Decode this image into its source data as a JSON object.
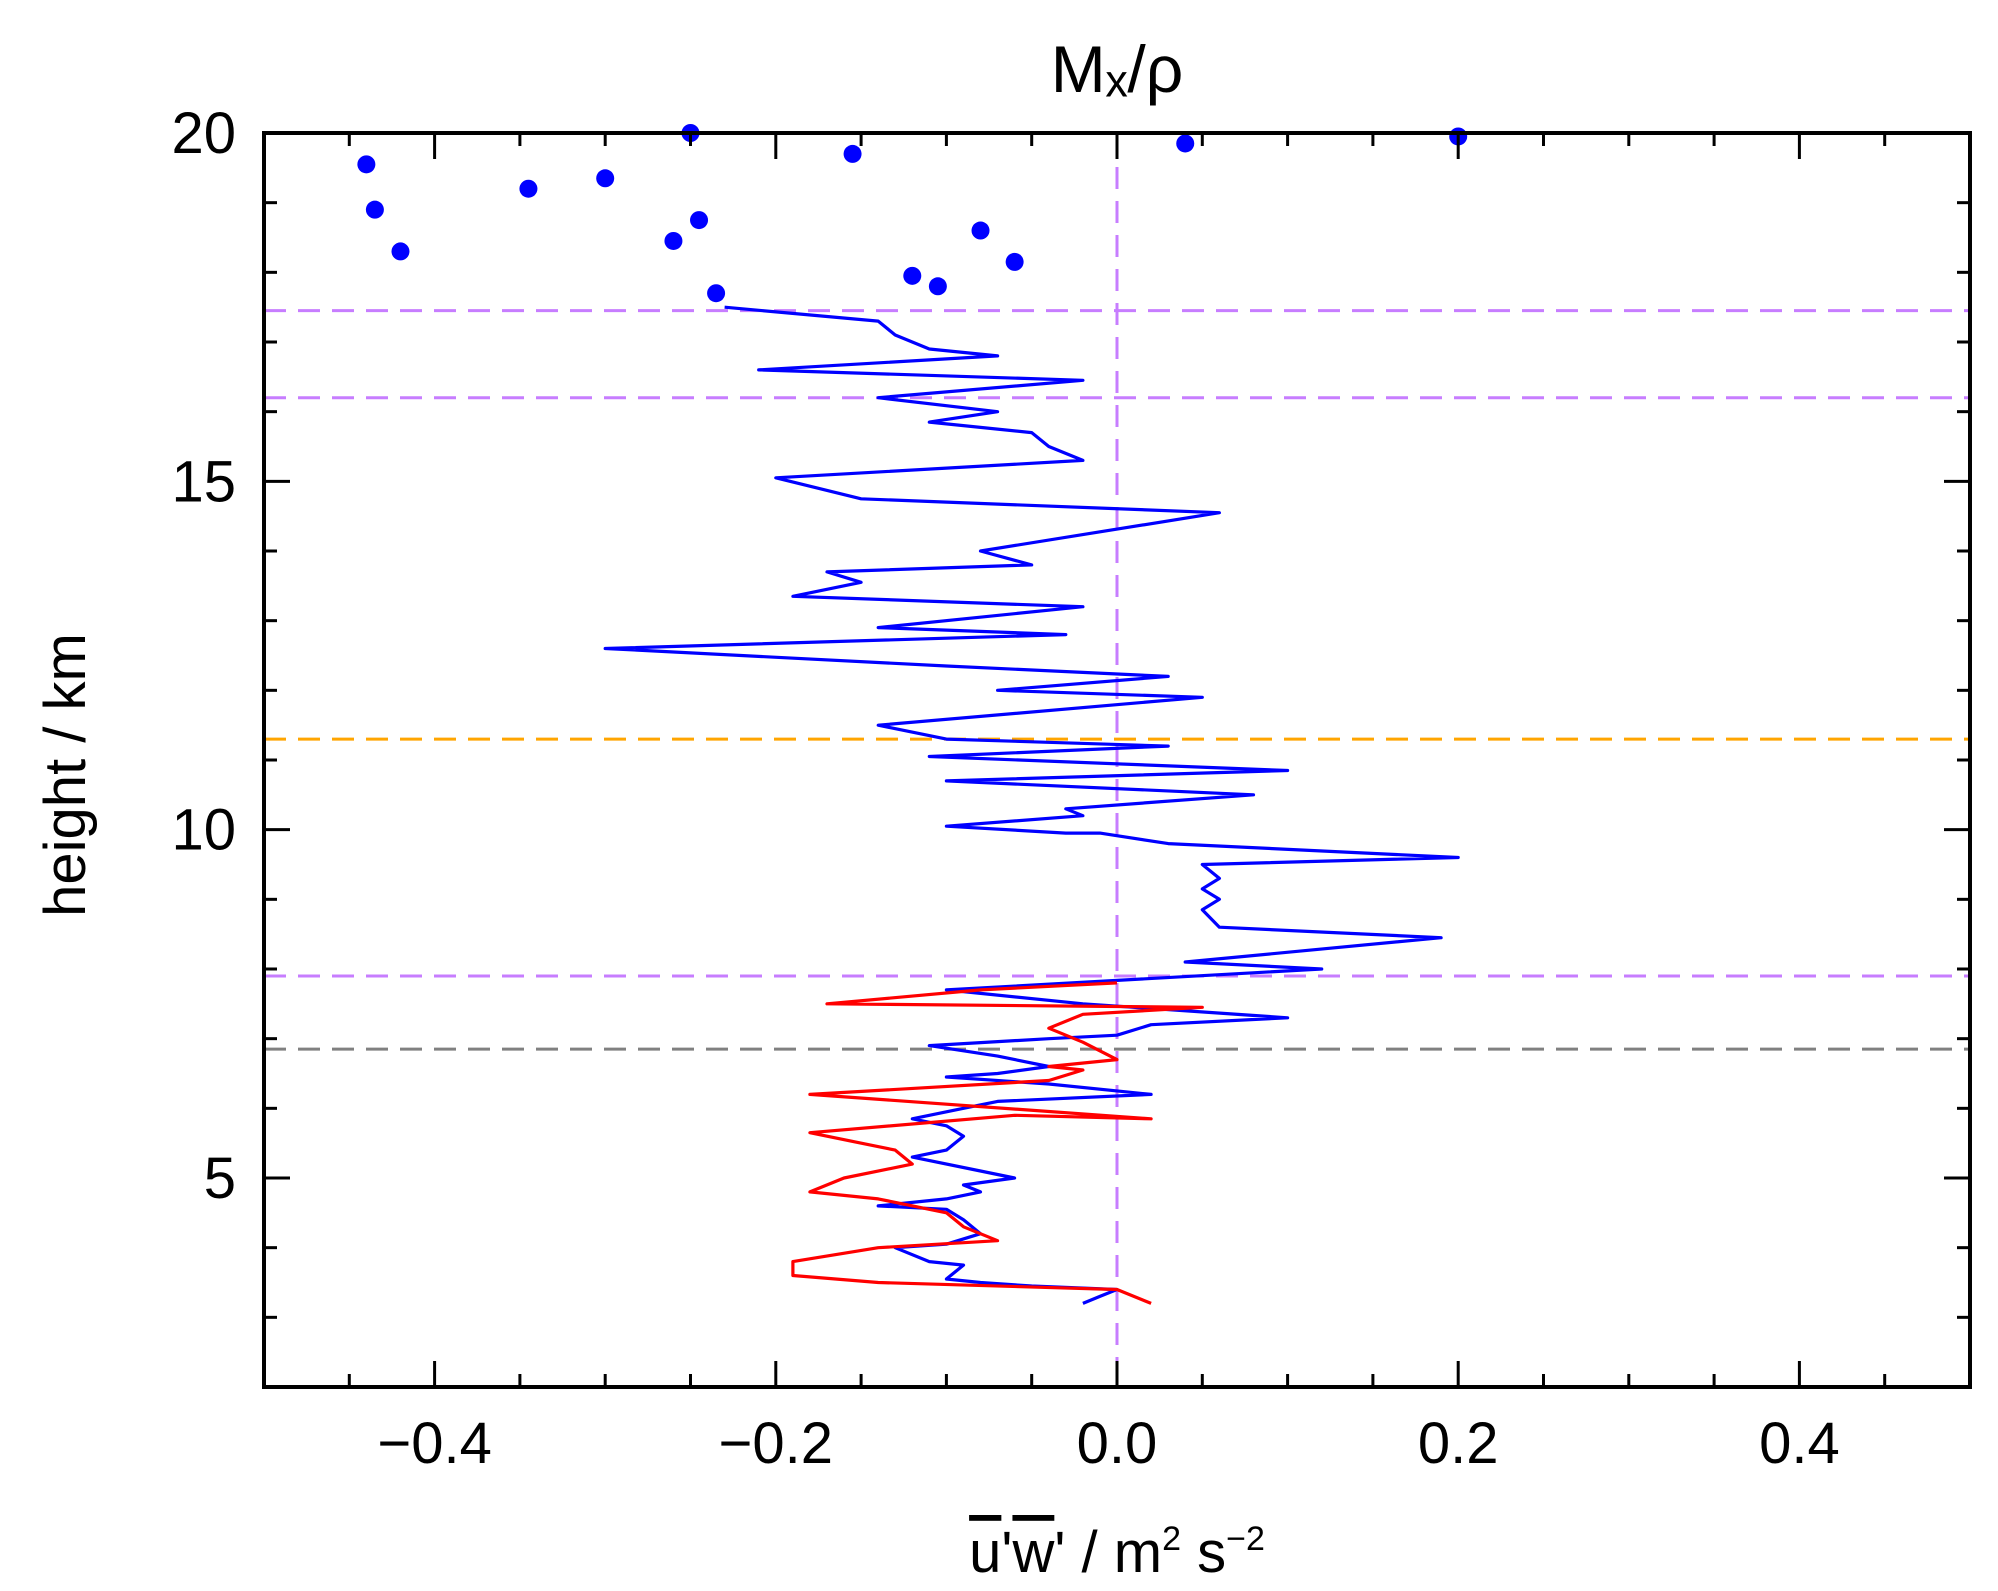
{
  "chart_data": {
    "type": "line",
    "title": "Mₓ/ρ",
    "xlabel": "u'w' / m² s⁻²",
    "xlabel_parts": {
      "u": "u",
      "w": "w",
      "unit": " / m",
      "sq": "2",
      "s": " s",
      "neg2": "−2"
    },
    "ylabel": "height / km",
    "xlim": [
      -0.5,
      0.5
    ],
    "ylim": [
      2,
      20
    ],
    "xticks": [
      -0.4,
      -0.2,
      0.0,
      0.2,
      0.4
    ],
    "xtick_labels": [
      "−0.4",
      "−0.2",
      "0.0",
      "0.2",
      "0.4"
    ],
    "yticks": [
      5,
      10,
      15,
      20
    ],
    "ytick_labels": [
      "5",
      "10",
      "15",
      "20"
    ],
    "colors": {
      "blue": "#0000ff",
      "red": "#ff0000",
      "violet": "#c77dff",
      "orange": "#ffa500",
      "grey": "#808080"
    },
    "reference_lines": [
      {
        "orientation": "vertical",
        "value": 0.0,
        "color": "violet"
      },
      {
        "orientation": "horizontal",
        "value": 17.45,
        "color": "violet"
      },
      {
        "orientation": "horizontal",
        "value": 16.2,
        "color": "violet"
      },
      {
        "orientation": "horizontal",
        "value": 11.3,
        "color": "orange"
      },
      {
        "orientation": "horizontal",
        "value": 7.9,
        "color": "violet"
      },
      {
        "orientation": "horizontal",
        "value": 6.85,
        "color": "grey"
      }
    ],
    "series": [
      {
        "name": "blue line",
        "color": "blue",
        "points": [
          [
            -0.02,
            3.2
          ],
          [
            -0.01,
            3.3
          ],
          [
            0.0,
            3.4
          ],
          [
            -0.05,
            3.45
          ],
          [
            -0.08,
            3.5
          ],
          [
            -0.1,
            3.55
          ],
          [
            -0.09,
            3.75
          ],
          [
            -0.11,
            3.8
          ],
          [
            -0.13,
            4.0
          ],
          [
            -0.1,
            4.05
          ],
          [
            -0.08,
            4.2
          ],
          [
            -0.09,
            4.4
          ],
          [
            -0.1,
            4.55
          ],
          [
            -0.14,
            4.6
          ],
          [
            -0.1,
            4.7
          ],
          [
            -0.08,
            4.8
          ],
          [
            -0.09,
            4.9
          ],
          [
            -0.06,
            5.0
          ],
          [
            -0.08,
            5.1
          ],
          [
            -0.12,
            5.3
          ],
          [
            -0.1,
            5.4
          ],
          [
            -0.09,
            5.6
          ],
          [
            -0.1,
            5.75
          ],
          [
            -0.12,
            5.85
          ],
          [
            -0.09,
            6.0
          ],
          [
            -0.07,
            6.1
          ],
          [
            0.02,
            6.2
          ],
          [
            -0.04,
            6.35
          ],
          [
            -0.1,
            6.45
          ],
          [
            -0.07,
            6.5
          ],
          [
            -0.04,
            6.6
          ],
          [
            -0.07,
            6.75
          ],
          [
            -0.11,
            6.9
          ],
          [
            -0.04,
            7.0
          ],
          [
            0.0,
            7.05
          ],
          [
            0.02,
            7.2
          ],
          [
            0.1,
            7.3
          ],
          [
            -0.02,
            7.5
          ],
          [
            -0.1,
            7.7
          ],
          [
            0.12,
            8.0
          ],
          [
            0.04,
            8.1
          ],
          [
            0.19,
            8.45
          ],
          [
            0.06,
            8.6
          ],
          [
            0.05,
            8.85
          ],
          [
            0.06,
            9.0
          ],
          [
            0.05,
            9.15
          ],
          [
            0.06,
            9.3
          ],
          [
            0.05,
            9.5
          ],
          [
            0.2,
            9.6
          ],
          [
            0.03,
            9.8
          ],
          [
            -0.01,
            9.95
          ],
          [
            -0.03,
            9.95
          ],
          [
            -0.1,
            10.05
          ],
          [
            -0.02,
            10.2
          ],
          [
            -0.03,
            10.3
          ],
          [
            0.08,
            10.5
          ],
          [
            -0.1,
            10.7
          ],
          [
            0.1,
            10.85
          ],
          [
            -0.11,
            11.05
          ],
          [
            0.03,
            11.2
          ],
          [
            -0.1,
            11.3
          ],
          [
            -0.14,
            11.5
          ],
          [
            0.05,
            11.9
          ],
          [
            -0.07,
            12.0
          ],
          [
            0.03,
            12.2
          ],
          [
            -0.1,
            12.35
          ],
          [
            -0.3,
            12.6
          ],
          [
            -0.03,
            12.8
          ],
          [
            -0.14,
            12.9
          ],
          [
            -0.02,
            13.2
          ],
          [
            -0.19,
            13.35
          ],
          [
            -0.15,
            13.55
          ],
          [
            -0.17,
            13.7
          ],
          [
            -0.05,
            13.8
          ],
          [
            -0.08,
            14.0
          ],
          [
            0.06,
            14.55
          ],
          [
            -0.15,
            14.75
          ],
          [
            -0.2,
            15.05
          ],
          [
            -0.02,
            15.3
          ],
          [
            -0.04,
            15.5
          ],
          [
            -0.05,
            15.7
          ],
          [
            -0.11,
            15.85
          ],
          [
            -0.07,
            16.0
          ],
          [
            -0.14,
            16.2
          ],
          [
            -0.02,
            16.45
          ],
          [
            -0.21,
            16.6
          ],
          [
            -0.07,
            16.8
          ],
          [
            -0.11,
            16.9
          ],
          [
            -0.13,
            17.1
          ],
          [
            -0.14,
            17.3
          ],
          [
            -0.23,
            17.5
          ]
        ]
      },
      {
        "name": "red line",
        "color": "red",
        "points": [
          [
            0.02,
            3.2
          ],
          [
            0.0,
            3.4
          ],
          [
            -0.14,
            3.5
          ],
          [
            -0.19,
            3.6
          ],
          [
            -0.19,
            3.8
          ],
          [
            -0.14,
            4.0
          ],
          [
            -0.07,
            4.1
          ],
          [
            -0.09,
            4.3
          ],
          [
            -0.1,
            4.5
          ],
          [
            -0.14,
            4.7
          ],
          [
            -0.18,
            4.8
          ],
          [
            -0.16,
            5.0
          ],
          [
            -0.12,
            5.2
          ],
          [
            -0.13,
            5.4
          ],
          [
            -0.18,
            5.65
          ],
          [
            -0.06,
            5.9
          ],
          [
            0.02,
            5.85
          ],
          [
            -0.18,
            6.2
          ],
          [
            -0.04,
            6.4
          ],
          [
            -0.02,
            6.55
          ],
          [
            -0.04,
            6.6
          ],
          [
            0.0,
            6.7
          ],
          [
            -0.02,
            6.95
          ],
          [
            -0.04,
            7.15
          ],
          [
            -0.02,
            7.35
          ],
          [
            0.05,
            7.45
          ],
          [
            -0.17,
            7.5
          ],
          [
            -0.08,
            7.7
          ],
          [
            0.0,
            7.8
          ]
        ]
      },
      {
        "name": "blue points",
        "color": "blue",
        "marker": "dot",
        "points": [
          [
            -0.44,
            19.55
          ],
          [
            -0.435,
            18.9
          ],
          [
            -0.42,
            18.3
          ],
          [
            -0.345,
            19.2
          ],
          [
            -0.3,
            19.35
          ],
          [
            -0.25,
            20.0
          ],
          [
            -0.26,
            18.45
          ],
          [
            -0.245,
            18.75
          ],
          [
            -0.235,
            17.7
          ],
          [
            -0.155,
            19.7
          ],
          [
            -0.12,
            17.95
          ],
          [
            -0.105,
            17.8
          ],
          [
            -0.08,
            18.6
          ],
          [
            -0.06,
            18.15
          ],
          [
            0.04,
            19.85
          ],
          [
            0.2,
            19.95
          ]
        ]
      }
    ]
  }
}
